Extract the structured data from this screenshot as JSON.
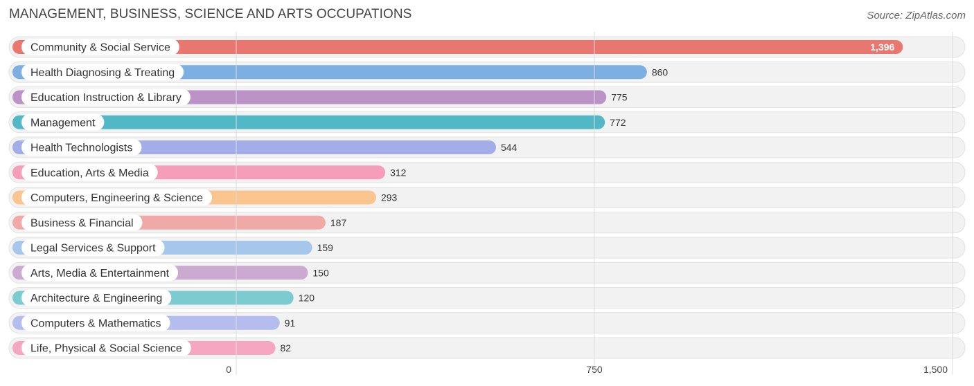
{
  "header": {
    "title": "MANAGEMENT, BUSINESS, SCIENCE AND ARTS OCCUPATIONS",
    "source": "Source: ZipAtlas.com"
  },
  "chart_data": {
    "type": "bar",
    "orientation": "horizontal",
    "title": "MANAGEMENT, BUSINESS, SCIENCE AND ARTS OCCUPATIONS",
    "xlim": [
      0,
      1500
    ],
    "ticks": [
      0,
      750,
      1500
    ],
    "tick_labels": [
      "0",
      "750",
      "1,500"
    ],
    "grid": true,
    "categories": [
      "Community & Social Service",
      "Health Diagnosing & Treating",
      "Education Instruction & Library",
      "Management",
      "Health Technologists",
      "Education, Arts & Media",
      "Computers, Engineering & Science",
      "Business & Financial",
      "Legal Services & Support",
      "Arts, Media & Entertainment",
      "Architecture & Engineering",
      "Computers & Mathematics",
      "Life, Physical & Social Science"
    ],
    "values": [
      1396,
      860,
      775,
      772,
      544,
      312,
      293,
      187,
      159,
      150,
      120,
      91,
      82
    ],
    "value_labels": [
      "1,396",
      "860",
      "775",
      "772",
      "544",
      "312",
      "293",
      "187",
      "159",
      "150",
      "120",
      "91",
      "82"
    ],
    "colors": [
      "#e8776f",
      "#7eafe3",
      "#bb93c7",
      "#52b8c6",
      "#a3aee8",
      "#f59db9",
      "#fbc58f",
      "#f0a9a6",
      "#a6c6ec",
      "#cba9d0",
      "#7ccbd0",
      "#b5bdee",
      "#f7a6c1"
    ]
  }
}
